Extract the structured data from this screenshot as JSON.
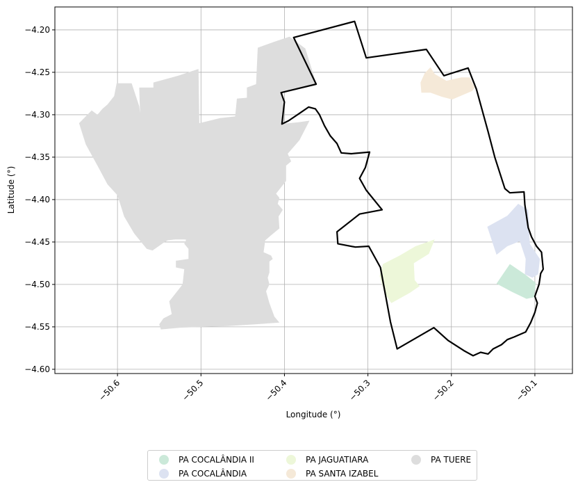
{
  "axes": {
    "xlabel": "Longitude (°)",
    "ylabel": "Latitude (°)",
    "xlim": [
      -50.675,
      -50.055
    ],
    "ylim": [
      -4.605,
      -4.173
    ],
    "xticks": [
      {
        "value": -50.6,
        "label": "−50.6"
      },
      {
        "value": -50.5,
        "label": "−50.5"
      },
      {
        "value": -50.4,
        "label": "−50.4"
      },
      {
        "value": -50.3,
        "label": "−50.3"
      },
      {
        "value": -50.2,
        "label": "−50.2"
      },
      {
        "value": -50.1,
        "label": "−50.1"
      }
    ],
    "yticks": [
      {
        "value": -4.2,
        "label": "−4.20"
      },
      {
        "value": -4.25,
        "label": "−4.25"
      },
      {
        "value": -4.3,
        "label": "−4.30"
      },
      {
        "value": -4.35,
        "label": "−4.35"
      },
      {
        "value": -4.4,
        "label": "−4.40"
      },
      {
        "value": -4.45,
        "label": "−4.45"
      },
      {
        "value": -4.5,
        "label": "−4.50"
      },
      {
        "value": -4.55,
        "label": "−4.55"
      },
      {
        "value": -4.6,
        "label": "−4.60"
      }
    ],
    "grid": true
  },
  "legend": {
    "placement": "bottom-center",
    "items": [
      {
        "label": "PA COCALÂNDIA II",
        "color": "#cbe9d9"
      },
      {
        "label": "PA COCALÂNDIA",
        "color": "#dce2f1"
      },
      {
        "label": "PA JAGUATIARA",
        "color": "#edf7d9"
      },
      {
        "label": "PA SANTA IZABEL",
        "color": "#f5e9d8"
      },
      {
        "label": "PA TUERE",
        "color": "#dddddd"
      }
    ]
  },
  "map_data": {
    "type": "choropleth",
    "boundary_color": "#000000",
    "regions": [
      {
        "name": "PA TUERE",
        "color": "#dddddd",
        "polygon": [
          [
            -50.646,
            -4.31
          ],
          [
            -50.636,
            -4.3
          ],
          [
            -50.631,
            -4.295
          ],
          [
            -50.624,
            -4.3
          ],
          [
            -50.618,
            -4.293
          ],
          [
            -50.612,
            -4.288
          ],
          [
            -50.604,
            -4.278
          ],
          [
            -50.601,
            -4.263
          ],
          [
            -50.583,
            -4.263
          ],
          [
            -50.578,
            -4.278
          ],
          [
            -50.574,
            -4.29
          ],
          [
            -50.573,
            -4.298
          ],
          [
            -50.574,
            -4.268
          ],
          [
            -50.557,
            -4.268
          ],
          [
            -50.557,
            -4.262
          ],
          [
            -50.527,
            -4.254
          ],
          [
            -50.503,
            -4.246
          ],
          [
            -50.502,
            -4.31
          ],
          [
            -50.477,
            -4.304
          ],
          [
            -50.459,
            -4.302
          ],
          [
            -50.457,
            -4.281
          ],
          [
            -50.445,
            -4.28
          ],
          [
            -50.445,
            -4.268
          ],
          [
            -50.434,
            -4.264
          ],
          [
            -50.432,
            -4.221
          ],
          [
            -50.412,
            -4.214
          ],
          [
            -50.394,
            -4.208
          ],
          [
            -50.375,
            -4.222
          ],
          [
            -50.362,
            -4.263
          ],
          [
            -50.373,
            -4.266
          ],
          [
            -50.402,
            -4.273
          ],
          [
            -50.4,
            -4.31
          ],
          [
            -50.395,
            -4.31
          ],
          [
            -50.384,
            -4.309
          ],
          [
            -50.37,
            -4.307
          ],
          [
            -50.382,
            -4.33
          ],
          [
            -50.396,
            -4.346
          ],
          [
            -50.392,
            -4.355
          ],
          [
            -50.398,
            -4.36
          ],
          [
            -50.398,
            -4.378
          ],
          [
            -50.41,
            -4.393
          ],
          [
            -50.406,
            -4.398
          ],
          [
            -50.408,
            -4.405
          ],
          [
            -50.402,
            -4.412
          ],
          [
            -50.407,
            -4.42
          ],
          [
            -50.406,
            -4.434
          ],
          [
            -50.416,
            -4.442
          ],
          [
            -50.423,
            -4.448
          ],
          [
            -50.425,
            -4.462
          ],
          [
            -50.416,
            -4.466
          ],
          [
            -50.414,
            -4.47
          ],
          [
            -50.418,
            -4.473
          ],
          [
            -50.418,
            -4.486
          ],
          [
            -50.42,
            -4.492
          ],
          [
            -50.418,
            -4.5
          ],
          [
            -50.422,
            -4.508
          ],
          [
            -50.418,
            -4.522
          ],
          [
            -50.412,
            -4.538
          ],
          [
            -50.406,
            -4.545
          ],
          [
            -50.435,
            -4.547
          ],
          [
            -50.468,
            -4.549
          ],
          [
            -50.497,
            -4.55
          ],
          [
            -50.525,
            -4.551
          ],
          [
            -50.548,
            -4.553
          ],
          [
            -50.55,
            -4.547
          ],
          [
            -50.545,
            -4.54
          ],
          [
            -50.535,
            -4.535
          ],
          [
            -50.538,
            -4.52
          ],
          [
            -50.53,
            -4.51
          ],
          [
            -50.522,
            -4.5
          ],
          [
            -50.52,
            -4.482
          ],
          [
            -50.53,
            -4.48
          ],
          [
            -50.53,
            -4.472
          ],
          [
            -50.515,
            -4.47
          ],
          [
            -50.515,
            -4.458
          ],
          [
            -50.52,
            -4.452
          ],
          [
            -50.514,
            -4.44
          ],
          [
            -50.514,
            -4.432
          ],
          [
            -50.51,
            -4.418
          ],
          [
            -50.5,
            -4.414
          ],
          [
            -50.496,
            -4.402
          ],
          [
            -50.484,
            -4.392
          ],
          [
            -50.47,
            -4.398
          ],
          [
            -50.462,
            -4.41
          ],
          [
            -50.454,
            -4.418
          ],
          [
            -50.442,
            -4.415
          ],
          [
            -50.436,
            -4.405
          ],
          [
            -50.43,
            -4.398
          ],
          [
            -50.422,
            -4.406
          ],
          [
            -50.41,
            -4.4
          ],
          [
            -50.42,
            -4.405
          ],
          [
            -50.439,
            -4.422
          ],
          [
            -50.45,
            -4.43
          ],
          [
            -50.466,
            -4.432
          ],
          [
            -50.47,
            -4.443
          ],
          [
            -50.48,
            -4.445
          ],
          [
            -50.49,
            -4.447
          ],
          [
            -50.5,
            -4.45
          ],
          [
            -50.52,
            -4.447
          ],
          [
            -50.531,
            -4.447
          ],
          [
            -50.54,
            -4.448
          ],
          [
            -50.545,
            -4.451
          ],
          [
            -50.558,
            -4.46
          ],
          [
            -50.565,
            -4.458
          ],
          [
            -50.58,
            -4.44
          ],
          [
            -50.592,
            -4.42
          ],
          [
            -50.6,
            -4.395
          ],
          [
            -50.612,
            -4.382
          ],
          [
            -50.624,
            -4.36
          ],
          [
            -50.638,
            -4.335
          ]
        ]
      },
      {
        "name": "PA SANTA IZABEL",
        "color": "#f5e9d8",
        "polygon": [
          [
            -50.237,
            -4.262
          ],
          [
            -50.232,
            -4.251
          ],
          [
            -50.225,
            -4.244
          ],
          [
            -50.22,
            -4.252
          ],
          [
            -50.206,
            -4.26
          ],
          [
            -50.188,
            -4.256
          ],
          [
            -50.178,
            -4.256
          ],
          [
            -50.172,
            -4.268
          ],
          [
            -50.175,
            -4.272
          ],
          [
            -50.199,
            -4.282
          ],
          [
            -50.211,
            -4.279
          ],
          [
            -50.225,
            -4.274
          ],
          [
            -50.236,
            -4.274
          ]
        ]
      },
      {
        "name": "PA COCALÂNDIA",
        "color": "#dce2f1",
        "polygon": [
          [
            -50.157,
            -4.432
          ],
          [
            -50.146,
            -4.465
          ],
          [
            -50.133,
            -4.455
          ],
          [
            -50.118,
            -4.449
          ],
          [
            -50.111,
            -4.47
          ],
          [
            -50.112,
            -4.488
          ],
          [
            -50.103,
            -4.492
          ],
          [
            -50.096,
            -4.488
          ],
          [
            -50.094,
            -4.47
          ],
          [
            -50.106,
            -4.452
          ],
          [
            -50.108,
            -4.412
          ],
          [
            -50.12,
            -4.405
          ],
          [
            -50.133,
            -4.419
          ]
        ]
      },
      {
        "name": "PA COCALÂNDIA II",
        "color": "#cbe9d9",
        "polygon": [
          [
            -50.13,
            -4.476
          ],
          [
            -50.146,
            -4.499
          ],
          [
            -50.127,
            -4.509
          ],
          [
            -50.11,
            -4.517
          ],
          [
            -50.101,
            -4.515
          ],
          [
            -50.099,
            -4.498
          ],
          [
            -50.112,
            -4.488
          ]
        ]
      },
      {
        "name": "PA JAGUATIARA",
        "color": "#edf7d9",
        "polygon": [
          [
            -50.282,
            -4.476
          ],
          [
            -50.262,
            -4.466
          ],
          [
            -50.243,
            -4.455
          ],
          [
            -50.22,
            -4.447
          ],
          [
            -50.227,
            -4.464
          ],
          [
            -50.245,
            -4.475
          ],
          [
            -50.244,
            -4.495
          ],
          [
            -50.238,
            -4.502
          ],
          [
            -50.25,
            -4.51
          ],
          [
            -50.272,
            -4.522
          ],
          [
            -50.28,
            -4.51
          ],
          [
            -50.286,
            -4.49
          ]
        ]
      }
    ],
    "outline": [
      [
        -50.389,
        -4.209
      ],
      [
        -50.316,
        -4.19
      ],
      [
        -50.302,
        -4.233
      ],
      [
        -50.23,
        -4.223
      ],
      [
        -50.209,
        -4.254
      ],
      [
        -50.18,
        -4.245
      ],
      [
        -50.17,
        -4.27
      ],
      [
        -50.156,
        -4.32
      ],
      [
        -50.148,
        -4.35
      ],
      [
        -50.136,
        -4.387
      ],
      [
        -50.13,
        -4.392
      ],
      [
        -50.113,
        -4.391
      ],
      [
        -50.112,
        -4.406
      ],
      [
        -50.108,
        -4.433
      ],
      [
        -50.104,
        -4.444
      ],
      [
        -50.098,
        -4.455
      ],
      [
        -50.092,
        -4.462
      ],
      [
        -50.09,
        -4.482
      ],
      [
        -50.093,
        -4.487
      ],
      [
        -50.095,
        -4.5
      ],
      [
        -50.1,
        -4.514
      ],
      [
        -50.097,
        -4.522
      ],
      [
        -50.1,
        -4.533
      ],
      [
        -50.105,
        -4.545
      ],
      [
        -50.111,
        -4.556
      ],
      [
        -50.125,
        -4.562
      ],
      [
        -50.133,
        -4.565
      ],
      [
        -50.14,
        -4.571
      ],
      [
        -50.15,
        -4.576
      ],
      [
        -50.156,
        -4.582
      ],
      [
        -50.165,
        -4.58
      ],
      [
        -50.174,
        -4.584
      ],
      [
        -50.185,
        -4.578
      ],
      [
        -50.204,
        -4.566
      ],
      [
        -50.221,
        -4.551
      ],
      [
        -50.265,
        -4.576
      ],
      [
        -50.273,
        -4.544
      ],
      [
        -50.285,
        -4.48
      ],
      [
        -50.299,
        -4.455
      ],
      [
        -50.315,
        -4.456
      ],
      [
        -50.336,
        -4.452
      ],
      [
        -50.337,
        -4.438
      ],
      [
        -50.31,
        -4.417
      ],
      [
        -50.283,
        -4.412
      ],
      [
        -50.302,
        -4.389
      ],
      [
        -50.31,
        -4.375
      ],
      [
        -50.303,
        -4.362
      ],
      [
        -50.298,
        -4.344
      ],
      [
        -50.32,
        -4.346
      ],
      [
        -50.332,
        -4.345
      ],
      [
        -50.337,
        -4.334
      ],
      [
        -50.345,
        -4.325
      ],
      [
        -50.352,
        -4.313
      ],
      [
        -50.358,
        -4.3
      ],
      [
        -50.363,
        -4.293
      ],
      [
        -50.371,
        -4.291
      ],
      [
        -50.38,
        -4.297
      ],
      [
        -50.395,
        -4.307
      ],
      [
        -50.403,
        -4.311
      ],
      [
        -50.4,
        -4.285
      ],
      [
        -50.404,
        -4.274
      ],
      [
        -50.362,
        -4.264
      ]
    ]
  }
}
